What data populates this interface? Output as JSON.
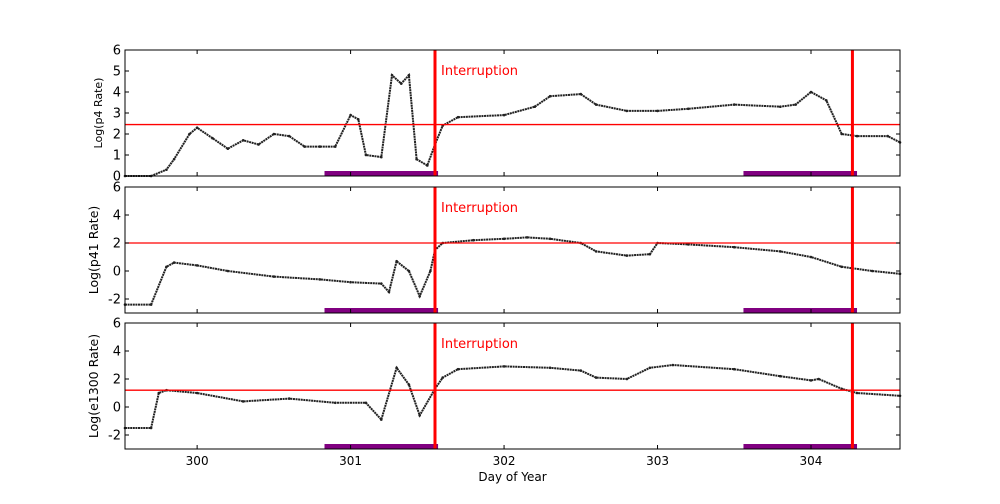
{
  "chart_data": {
    "type": "scatter",
    "xlabel": "Day of Year",
    "xlim": [
      299.53,
      304.58
    ],
    "xticks": [
      300,
      301,
      302,
      303,
      304
    ],
    "grid": false,
    "interruption_label": "Interruption",
    "interruption_days": [
      301.55,
      304.27
    ],
    "highlight_intervals": [
      [
        300.83,
        301.57
      ],
      [
        303.56,
        304.3
      ]
    ],
    "colors": {
      "data": "#222222",
      "interruption": "#ff0000",
      "threshold": "#ff0000",
      "interval": "#800080"
    },
    "panels": [
      {
        "ylabel": "Log(p4 Rate)",
        "ylim": [
          0,
          6
        ],
        "yticks": [
          0,
          1,
          2,
          3,
          4,
          5,
          6
        ],
        "threshold": 2.45,
        "x": [
          299.53,
          299.7,
          299.8,
          299.85,
          299.95,
          300.0,
          300.1,
          300.2,
          300.3,
          300.4,
          300.5,
          300.6,
          300.7,
          300.8,
          300.9,
          301.0,
          301.05,
          301.1,
          301.2,
          301.27,
          301.33,
          301.38,
          301.43,
          301.5,
          301.55,
          301.6,
          301.7,
          302.0,
          302.2,
          302.3,
          302.5,
          302.6,
          302.8,
          303.0,
          303.2,
          303.5,
          303.8,
          303.9,
          304.0,
          304.1,
          304.2,
          304.3,
          304.5,
          304.58
        ],
        "y": [
          0,
          0,
          0.3,
          0.8,
          2.0,
          2.3,
          1.8,
          1.3,
          1.7,
          1.5,
          2.0,
          1.9,
          1.4,
          1.4,
          1.4,
          2.9,
          2.7,
          1.0,
          0.9,
          4.8,
          4.4,
          4.8,
          0.8,
          0.5,
          1.5,
          2.4,
          2.8,
          2.9,
          3.3,
          3.8,
          3.9,
          3.4,
          3.1,
          3.1,
          3.2,
          3.4,
          3.3,
          3.4,
          4.0,
          3.6,
          2.0,
          1.9,
          1.9,
          1.6
        ]
      },
      {
        "ylabel": "Log(p41 Rate)",
        "ylim": [
          -3,
          6
        ],
        "yticks": [
          -2,
          0,
          2,
          4,
          6
        ],
        "threshold": 2.0,
        "x": [
          299.53,
          299.7,
          299.8,
          299.85,
          300.0,
          300.2,
          300.5,
          300.8,
          301.0,
          301.2,
          301.25,
          301.3,
          301.38,
          301.45,
          301.52,
          301.55,
          301.6,
          301.8,
          302.0,
          302.15,
          302.3,
          302.5,
          302.6,
          302.8,
          302.95,
          303.0,
          303.2,
          303.5,
          303.8,
          304.0,
          304.2,
          304.4,
          304.58
        ],
        "y": [
          -2.4,
          -2.4,
          0.3,
          0.6,
          0.4,
          0.0,
          -0.4,
          -0.6,
          -0.8,
          -0.9,
          -1.5,
          0.7,
          0.0,
          -1.8,
          0.0,
          1.5,
          2.0,
          2.2,
          2.3,
          2.4,
          2.3,
          2.0,
          1.4,
          1.1,
          1.2,
          2.0,
          1.9,
          1.7,
          1.4,
          1.0,
          0.3,
          0.0,
          -0.2
        ]
      },
      {
        "ylabel": "Log(e1300 Rate)",
        "ylim": [
          -3,
          6
        ],
        "yticks": [
          -2,
          0,
          2,
          4,
          6
        ],
        "threshold": 1.2,
        "x": [
          299.53,
          299.7,
          299.75,
          299.8,
          300.0,
          300.3,
          300.6,
          300.9,
          301.1,
          301.2,
          301.3,
          301.38,
          301.45,
          301.55,
          301.6,
          301.7,
          302.0,
          302.3,
          302.5,
          302.6,
          302.8,
          302.95,
          303.1,
          303.5,
          303.8,
          304.0,
          304.05,
          304.2,
          304.3,
          304.58
        ],
        "y": [
          -1.5,
          -1.5,
          1.0,
          1.2,
          1.0,
          0.4,
          0.6,
          0.3,
          0.3,
          -0.9,
          2.8,
          1.6,
          -0.6,
          1.3,
          2.1,
          2.7,
          2.9,
          2.8,
          2.6,
          2.1,
          2.0,
          2.8,
          3.0,
          2.7,
          2.2,
          1.9,
          2.0,
          1.3,
          1.0,
          0.8
        ]
      }
    ]
  }
}
